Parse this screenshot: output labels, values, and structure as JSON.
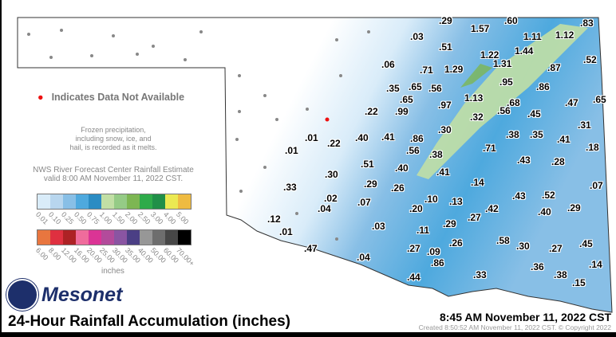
{
  "title": "24-Hour Rainfall Accumulation (inches)",
  "observation_time": "8:45 AM November 11, 2022 CST",
  "created": "Created 8:50:52 AM November 11, 2022 CST. © Copyright 2022",
  "logo_text": "Mesonet",
  "not_available": "Indicates Data Not Available",
  "frozen_note": [
    "Frozen precipitation,",
    "including snow, ice, and",
    "hail, is recorded as it melts."
  ],
  "nws_note": [
    "NWS River Forecast Center Rainfall Estimate",
    "valid 8:00 AM November 11, 2022 CST."
  ],
  "legend": {
    "units": "inches",
    "row1": [
      {
        "label": "0.01",
        "color": "#d9ecf9"
      },
      {
        "label": "0.10",
        "color": "#b8d6ee"
      },
      {
        "label": "0.25",
        "color": "#88bfe6"
      },
      {
        "label": "0.50",
        "color": "#4ea9de"
      },
      {
        "label": "0.75",
        "color": "#2b8cc3"
      },
      {
        "label": "1.00",
        "color": "#c1dfa5"
      },
      {
        "label": "1.50",
        "color": "#95cb86"
      },
      {
        "label": "2.00",
        "color": "#7db653"
      },
      {
        "label": "2.50",
        "color": "#2eab4a"
      },
      {
        "label": "3.00",
        "color": "#208f48"
      },
      {
        "label": "4.00",
        "color": "#ebe952"
      },
      {
        "label": "5.00",
        "color": "#efbb41"
      }
    ],
    "row2": [
      {
        "label": "6.00",
        "color": "#e8763f"
      },
      {
        "label": "8.00",
        "color": "#df3040"
      },
      {
        "label": "12.00",
        "color": "#ad2225"
      },
      {
        "label": "16.00",
        "color": "#ef6c9c"
      },
      {
        "label": "20.00",
        "color": "#db3495"
      },
      {
        "label": "25.00",
        "color": "#b34b9b"
      },
      {
        "label": "30.00",
        "color": "#8a55a2"
      },
      {
        "label": "35.00",
        "color": "#4b3f85"
      },
      {
        "label": "40.00",
        "color": "#979797"
      },
      {
        "label": "50.00",
        "color": "#6e6e6e"
      },
      {
        "label": "60.00",
        "color": "#474747"
      },
      {
        "label": "70.00+",
        "color": "#000000"
      }
    ]
  },
  "stations": [
    ".29",
    "1.57",
    ".60",
    ".83",
    ".03",
    "1.11",
    "1.12",
    ".51",
    "1.22",
    "1.44",
    ".52",
    ".06",
    ".71",
    "1.29",
    "1.31",
    ".87",
    ".35",
    ".65",
    ".56",
    ".95",
    ".86",
    "1.13",
    ".65",
    ".97",
    ".68",
    ".47",
    ".65",
    ".22",
    ".99",
    ".56",
    ".45",
    ".32",
    ".31",
    ".30",
    ".40",
    ".41",
    ".86",
    ".38",
    ".35",
    ".41",
    ".18",
    ".01",
    ".22",
    ".01",
    ".71",
    ".56",
    ".38",
    ".43",
    ".28",
    ".51",
    ".40",
    ".41",
    ".30",
    ".14",
    ".07",
    ".33",
    ".29",
    ".26",
    ".43",
    ".52",
    ".02",
    ".07",
    ".10",
    ".13",
    ".42",
    ".29",
    ".04",
    ".40",
    ".12",
    ".20",
    ".27",
    ".03",
    ".11",
    ".29",
    ".01",
    ".26",
    ".58",
    ".30",
    ".27",
    ".45",
    ".47",
    ".04",
    ".27",
    ".09",
    ".86",
    ".14",
    ".44",
    ".33",
    ".36",
    ".38",
    ".15"
  ]
}
